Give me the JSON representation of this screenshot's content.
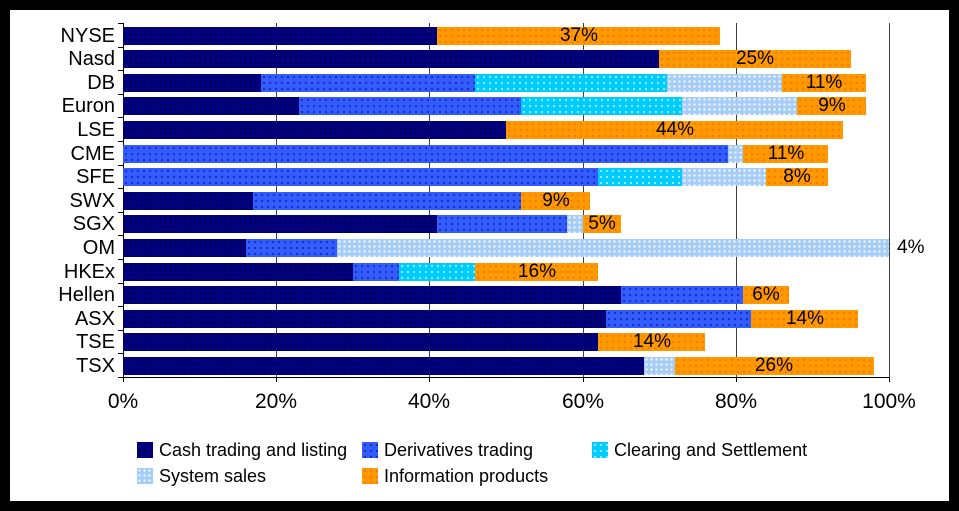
{
  "frame": {
    "border_color": "#000000",
    "chart_background": "#ffffff"
  },
  "colors": {
    "cash": "#000080",
    "derivatives": "#335cff",
    "clearing": "#00ccff",
    "system": "#a6cdf8",
    "information": "#ff9900",
    "gridline": "#3f3f3f",
    "axis": "#000000",
    "text": "#000000"
  },
  "chart_data": {
    "type": "bar",
    "orientation": "horizontal-stacked",
    "title": "",
    "xlabel": "",
    "ylabel": "",
    "xlim": [
      0,
      100
    ],
    "grid": "vertical",
    "legend_position": "bottom",
    "x_ticks": [
      {
        "pct": 0,
        "label": "0%"
      },
      {
        "pct": 20,
        "label": "20%"
      },
      {
        "pct": 40,
        "label": "40%"
      },
      {
        "pct": 60,
        "label": "60%"
      },
      {
        "pct": 80,
        "label": "80%"
      },
      {
        "pct": 100,
        "label": "100%"
      }
    ],
    "legend": [
      {
        "key": "cash",
        "label": "Cash trading and listing"
      },
      {
        "key": "derivatives",
        "label": "Derivatives trading"
      },
      {
        "key": "clearing",
        "label": "Clearing and Settlement"
      },
      {
        "key": "system",
        "label": "System sales"
      },
      {
        "key": "information",
        "label": "Information products"
      }
    ],
    "categories": [
      "NYSE",
      "Nasd",
      "DB",
      "Euron",
      "LSE",
      "CME",
      "SFE",
      "SWX",
      "SGX",
      "OM",
      "HKEx",
      "Hellen",
      "ASX",
      "TSE",
      "TSX"
    ],
    "rows": [
      {
        "category": "NYSE",
        "segments": [
          {
            "key": "cash",
            "value": 41
          },
          {
            "key": "information",
            "value": 37
          }
        ],
        "label": "37%",
        "label_placement": "center-information"
      },
      {
        "category": "Nasd",
        "segments": [
          {
            "key": "cash",
            "value": 70
          },
          {
            "key": "information",
            "value": 25
          }
        ],
        "label": "25%",
        "label_placement": "center-information"
      },
      {
        "category": "DB",
        "segments": [
          {
            "key": "cash",
            "value": 18
          },
          {
            "key": "derivatives",
            "value": 28
          },
          {
            "key": "clearing",
            "value": 25
          },
          {
            "key": "system",
            "value": 15
          },
          {
            "key": "information",
            "value": 11
          }
        ],
        "label": "11%",
        "label_placement": "center-information"
      },
      {
        "category": "Euron",
        "segments": [
          {
            "key": "cash",
            "value": 23
          },
          {
            "key": "derivatives",
            "value": 29
          },
          {
            "key": "clearing",
            "value": 21
          },
          {
            "key": "system",
            "value": 15
          },
          {
            "key": "information",
            "value": 9
          }
        ],
        "label": "9%",
        "label_placement": "center-information"
      },
      {
        "category": "LSE",
        "segments": [
          {
            "key": "cash",
            "value": 50
          },
          {
            "key": "information",
            "value": 44
          }
        ],
        "label": "44%",
        "label_placement": "center-information"
      },
      {
        "category": "CME",
        "segments": [
          {
            "key": "derivatives",
            "value": 79
          },
          {
            "key": "system",
            "value": 2
          },
          {
            "key": "information",
            "value": 11
          }
        ],
        "label": "11%",
        "label_placement": "center-information"
      },
      {
        "category": "SFE",
        "segments": [
          {
            "key": "derivatives",
            "value": 62
          },
          {
            "key": "clearing",
            "value": 11
          },
          {
            "key": "system",
            "value": 11
          },
          {
            "key": "information",
            "value": 8
          }
        ],
        "label": "8%",
        "label_placement": "center-information"
      },
      {
        "category": "SWX",
        "segments": [
          {
            "key": "cash",
            "value": 17
          },
          {
            "key": "derivatives",
            "value": 35
          },
          {
            "key": "information",
            "value": 9
          }
        ],
        "label": "9%",
        "label_placement": "center-information"
      },
      {
        "category": "SGX",
        "segments": [
          {
            "key": "cash",
            "value": 41
          },
          {
            "key": "derivatives",
            "value": 17
          },
          {
            "key": "system",
            "value": 2
          },
          {
            "key": "information",
            "value": 5
          }
        ],
        "label": "5%",
        "label_placement": "center-information"
      },
      {
        "category": "OM",
        "segments": [
          {
            "key": "cash",
            "value": 16
          },
          {
            "key": "derivatives",
            "value": 12
          },
          {
            "key": "system",
            "value": 72
          }
        ],
        "label": "4%",
        "label_placement": "outside-end"
      },
      {
        "category": "HKEx",
        "segments": [
          {
            "key": "cash",
            "value": 30
          },
          {
            "key": "derivatives",
            "value": 6
          },
          {
            "key": "clearing",
            "value": 10
          },
          {
            "key": "information",
            "value": 16
          }
        ],
        "label": "16%",
        "label_placement": "center-information"
      },
      {
        "category": "Hellen",
        "segments": [
          {
            "key": "cash",
            "value": 65
          },
          {
            "key": "derivatives",
            "value": 16
          },
          {
            "key": "information",
            "value": 6
          }
        ],
        "label": "6%",
        "label_placement": "center-information"
      },
      {
        "category": "ASX",
        "segments": [
          {
            "key": "cash",
            "value": 63
          },
          {
            "key": "derivatives",
            "value": 19
          },
          {
            "key": "information",
            "value": 14
          }
        ],
        "label": "14%",
        "label_placement": "center-information"
      },
      {
        "category": "TSE",
        "segments": [
          {
            "key": "cash",
            "value": 62
          },
          {
            "key": "information",
            "value": 14
          }
        ],
        "label": "14%",
        "label_placement": "center-information"
      },
      {
        "category": "TSX",
        "segments": [
          {
            "key": "cash",
            "value": 68
          },
          {
            "key": "system",
            "value": 4
          },
          {
            "key": "information",
            "value": 26
          }
        ],
        "label": "26%",
        "label_placement": "center-information"
      }
    ]
  },
  "layout_note_values_are_percent_of_axis": true
}
